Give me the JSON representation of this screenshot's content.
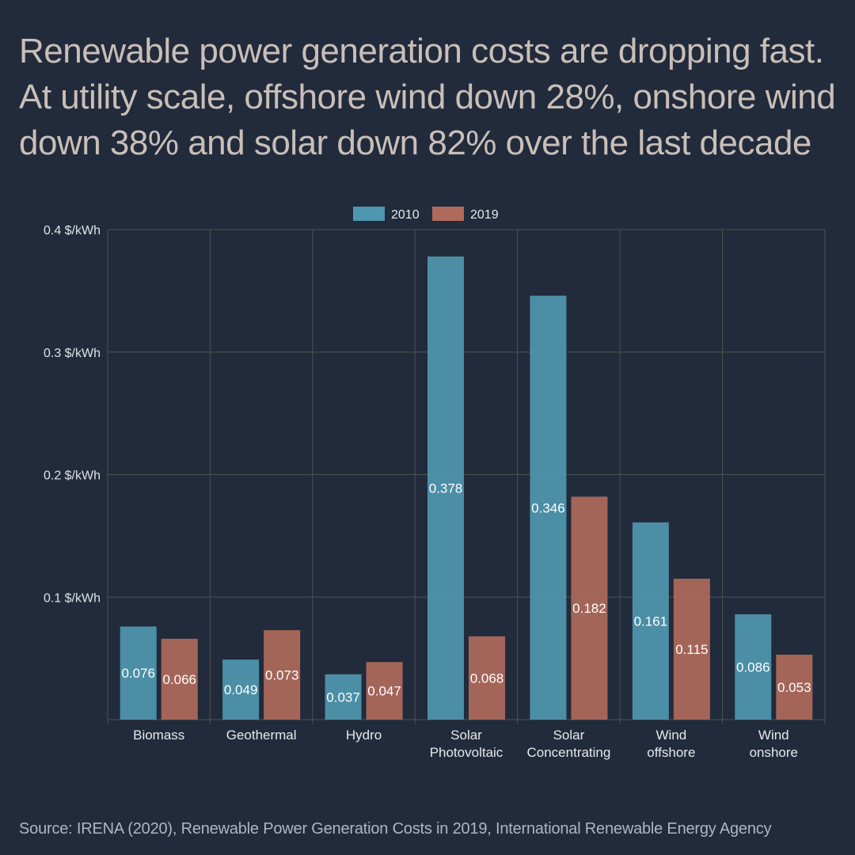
{
  "headline": {
    "lines": [
      "Renewable power generation costs are dropping fast.",
      "At utility scale, offshore wind down 28%, onshore wind",
      "down 38% and solar down 82% over the last decade"
    ]
  },
  "source": "Source: IRENA (2020), Renewable Power Generation Costs in 2019, International Renewable Energy Agency",
  "colors": {
    "background": "#222b3b",
    "series_2010": "#4f97b0",
    "series_2019": "#b06a5c",
    "grid": "#4c5350",
    "text": "#dfe3e8"
  },
  "chart_data": {
    "type": "bar",
    "title": "",
    "xlabel": "",
    "ylabel": "",
    "ylim": [
      0,
      0.4
    ],
    "yticks": [
      {
        "value": 0.1,
        "label": "0.1 $/kWh"
      },
      {
        "value": 0.2,
        "label": "0.2 $/kWh"
      },
      {
        "value": 0.3,
        "label": "0.3 $/kWh"
      },
      {
        "value": 0.4,
        "label": "0.4 $/kWh"
      }
    ],
    "grid": true,
    "legend_position": "top-center",
    "categories": [
      [
        "Biomass"
      ],
      [
        "Geothermal"
      ],
      [
        "Hydro"
      ],
      [
        "Solar",
        "Photovoltaic"
      ],
      [
        "Solar",
        "Concentrating"
      ],
      [
        "Wind",
        "offshore"
      ],
      [
        "Wind",
        "onshore"
      ]
    ],
    "series": [
      {
        "name": "2010",
        "color": "#4f97b0",
        "values": [
          0.076,
          0.049,
          0.037,
          0.378,
          0.346,
          0.161,
          0.086
        ]
      },
      {
        "name": "2019",
        "color": "#b06a5c",
        "values": [
          0.066,
          0.073,
          0.047,
          0.068,
          0.182,
          0.115,
          0.053
        ]
      }
    ]
  }
}
